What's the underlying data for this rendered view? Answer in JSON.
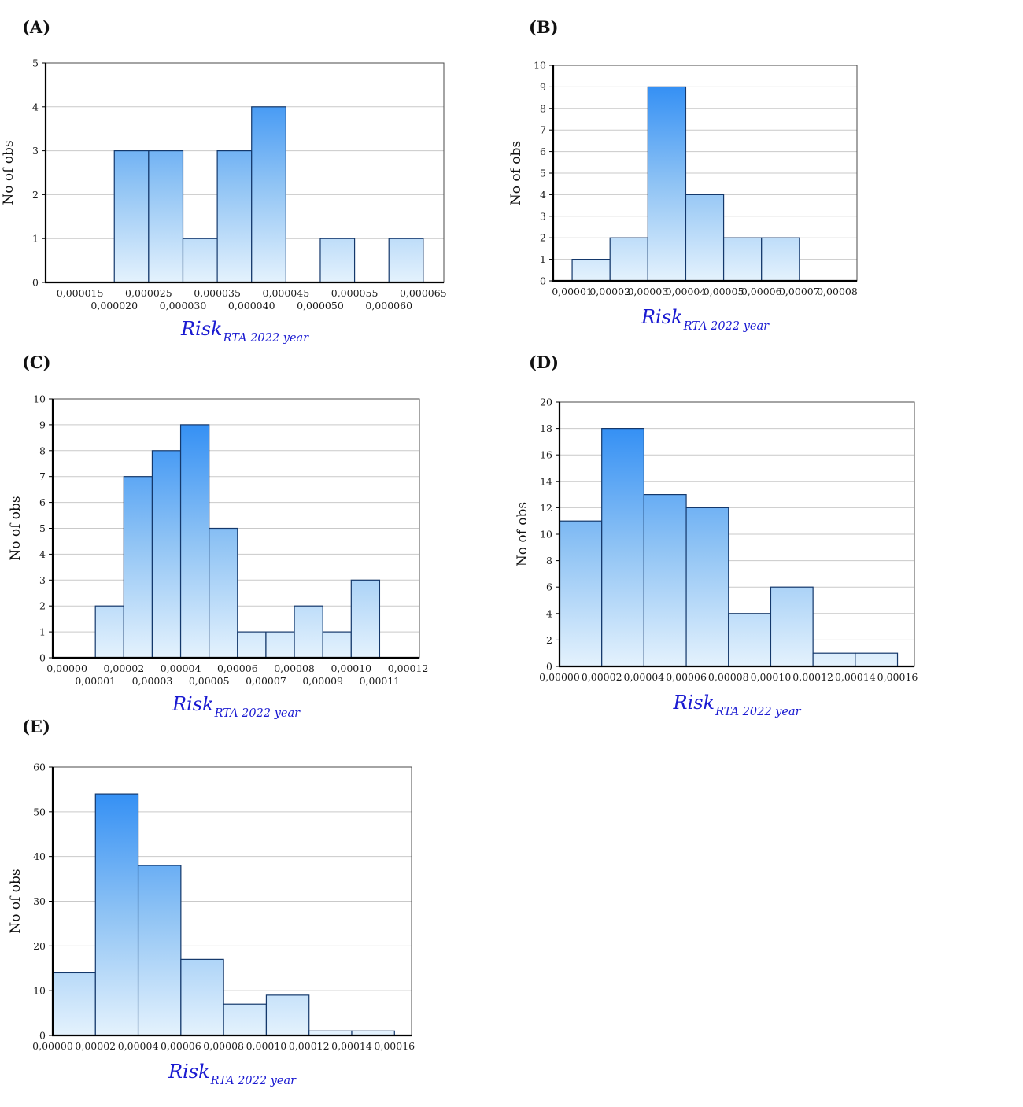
{
  "figure": {
    "background": "#ffffff",
    "colors": {
      "bar_top": "#2185f4",
      "bar_mid": "#8fc3f4",
      "bar_bottom": "#e4f2fd",
      "bar_border": "#14386b",
      "grid": "#c9c9c9",
      "frame": "#4a4a4a",
      "axis": "#000000",
      "tick_text": "#1a1a1a",
      "label_blue": "#1a1ad1"
    }
  },
  "chart_data": [
    {
      "type": "bar",
      "panel": "(A)",
      "ylabel": "No of obs",
      "xlabel": "Risk",
      "xlabel_subscript": "RTA 2022 year",
      "ylim": [
        0,
        5
      ],
      "y_tick_step": 1,
      "y_tick_labels": [
        "0",
        "1",
        "2",
        "3",
        "4",
        "5"
      ],
      "xlim": [
        1e-05,
        6.8e-05
      ],
      "bin_start": 2e-05,
      "bin_width": 5e-06,
      "values": [
        3,
        3,
        1,
        3,
        4,
        0,
        1,
        0,
        1
      ],
      "x_tick_labels": [
        "0,000015",
        "0,000020",
        "0,000025",
        "0,000030",
        "0,000035",
        "0,000040",
        "0,000045",
        "0,000050",
        "0,000055",
        "0,000060",
        "0,000065"
      ],
      "x_tick_rows": 2,
      "grid": true,
      "legend": "none"
    },
    {
      "type": "bar",
      "panel": "(B)",
      "ylabel": "No of obs",
      "xlabel": "Risk",
      "xlabel_subscript": "RTA 2022 year",
      "ylim": [
        0,
        10
      ],
      "y_tick_step": 1,
      "y_tick_labels": [
        "0",
        "1",
        "2",
        "3",
        "4",
        "5",
        "6",
        "7",
        "8",
        "9",
        "10"
      ],
      "xlim": [
        5e-06,
        8.52e-05
      ],
      "bin_start": 1e-05,
      "bin_width": 1e-05,
      "values": [
        1,
        2,
        9,
        4,
        2,
        2
      ],
      "x_tick_labels": [
        "0,00001",
        "0,00002",
        "0,00003",
        "0,00004",
        "0,00005",
        "0,00006",
        "0,00007",
        "0,00008"
      ],
      "x_tick_rows": 1,
      "grid": true,
      "legend": "none"
    },
    {
      "type": "bar",
      "panel": "(C)",
      "ylabel": "No of obs",
      "xlabel": "Risk",
      "xlabel_subscript": "RTA 2022 year",
      "ylim": [
        0,
        10
      ],
      "y_tick_step": 1,
      "y_tick_labels": [
        "0",
        "1",
        "2",
        "3",
        "4",
        "5",
        "6",
        "7",
        "8",
        "9",
        "10"
      ],
      "xlim": [
        -5e-06,
        0.000124
      ],
      "bin_start": 1e-05,
      "bin_width": 1e-05,
      "values": [
        2,
        7,
        8,
        9,
        5,
        1,
        1,
        2,
        1,
        3
      ],
      "x_tick_labels": [
        "0,00000",
        "0,00001",
        "0,00002",
        "0,00003",
        "0,00004",
        "0,00005",
        "0,00006",
        "0,00007",
        "0,00008",
        "0,00009",
        "0,00010",
        "0,00011",
        "0,00012"
      ],
      "x_tick_rows": 2,
      "grid": true,
      "legend": "none"
    },
    {
      "type": "bar",
      "panel": "(D)",
      "ylabel": "No of obs",
      "xlabel": "Risk",
      "xlabel_subscript": "RTA 2022 year",
      "ylim": [
        0,
        20
      ],
      "y_tick_step": 2,
      "y_tick_labels": [
        "0",
        "2",
        "4",
        "6",
        "8",
        "10",
        "12",
        "14",
        "16",
        "18",
        "20"
      ],
      "xlim": [
        0,
        0.000168
      ],
      "bin_start": 0,
      "bin_width": 2e-05,
      "values": [
        11,
        18,
        13,
        12,
        4,
        6,
        1,
        1
      ],
      "x_tick_labels": [
        "0,00000",
        "0,00002",
        "0,00004",
        "0,00006",
        "0,00008",
        "0,00010",
        "0,00012",
        "0,00014",
        "0,00016"
      ],
      "x_tick_rows": 1,
      "grid": true,
      "legend": "none"
    },
    {
      "type": "bar",
      "panel": "(E)",
      "ylabel": "No of obs",
      "xlabel": "Risk",
      "xlabel_subscript": "RTA 2022 year",
      "ylim": [
        0,
        60
      ],
      "y_tick_step": 10,
      "y_tick_labels": [
        "0",
        "10",
        "20",
        "30",
        "40",
        "50",
        "60"
      ],
      "xlim": [
        0,
        0.000168
      ],
      "bin_start": 0,
      "bin_width": 2e-05,
      "values": [
        14,
        54,
        38,
        17,
        7,
        9,
        1,
        1
      ],
      "x_tick_labels": [
        "0,00000",
        "0,00002",
        "0,00004",
        "0,00006",
        "0,00008",
        "0,00010",
        "0,00012",
        "0,00014",
        "0,00016"
      ],
      "x_tick_rows": 1,
      "grid": true,
      "legend": "none"
    }
  ]
}
